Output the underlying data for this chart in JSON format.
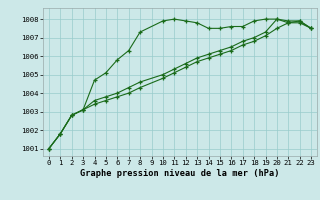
{
  "title": "Graphe pression niveau de la mer (hPa)",
  "bg_color": "#cce8e8",
  "line_color": "#1a6b1a",
  "grid_color": "#99cccc",
  "xlim": [
    -0.5,
    23.5
  ],
  "ylim": [
    1000.6,
    1008.6
  ],
  "yticks": [
    1001,
    1002,
    1003,
    1004,
    1005,
    1006,
    1007,
    1008
  ],
  "xticks": [
    0,
    1,
    2,
    3,
    4,
    5,
    6,
    7,
    8,
    9,
    10,
    11,
    12,
    13,
    14,
    15,
    16,
    17,
    18,
    19,
    20,
    21,
    22,
    23
  ],
  "series1_x": [
    0,
    1,
    2,
    3,
    4,
    5,
    6,
    7,
    8,
    10,
    11,
    12,
    13,
    14,
    15,
    16,
    17,
    18,
    19,
    20,
    21,
    22,
    23
  ],
  "series1_y": [
    1001.0,
    1001.8,
    1002.8,
    1003.1,
    1004.7,
    1005.1,
    1005.8,
    1006.3,
    1007.3,
    1007.9,
    1008.0,
    1007.9,
    1007.8,
    1007.5,
    1007.5,
    1007.6,
    1007.6,
    1007.9,
    1008.0,
    1008.0,
    1007.8,
    1007.8,
    1007.5
  ],
  "series2_x": [
    0,
    1,
    2,
    3,
    4,
    5,
    6,
    7,
    8,
    10,
    11,
    12,
    13,
    14,
    15,
    16,
    17,
    18,
    19,
    20,
    21,
    22,
    23
  ],
  "series2_y": [
    1001.0,
    1001.8,
    1002.8,
    1003.1,
    1003.4,
    1003.6,
    1003.8,
    1004.0,
    1004.3,
    1004.8,
    1005.1,
    1005.4,
    1005.7,
    1005.9,
    1006.1,
    1006.3,
    1006.6,
    1006.8,
    1007.1,
    1007.5,
    1007.8,
    1007.9,
    1007.5
  ],
  "series3_x": [
    0,
    1,
    2,
    3,
    4,
    5,
    6,
    7,
    8,
    10,
    11,
    12,
    13,
    14,
    15,
    16,
    17,
    18,
    19,
    20,
    21,
    22,
    23
  ],
  "series3_y": [
    1001.0,
    1001.8,
    1002.8,
    1003.1,
    1003.6,
    1003.8,
    1004.0,
    1004.3,
    1004.6,
    1005.0,
    1005.3,
    1005.6,
    1005.9,
    1006.1,
    1006.3,
    1006.5,
    1006.8,
    1007.0,
    1007.3,
    1008.0,
    1007.9,
    1007.9,
    1007.5
  ],
  "tick_fontsize": 5.2,
  "xlabel_fontsize": 6.2
}
